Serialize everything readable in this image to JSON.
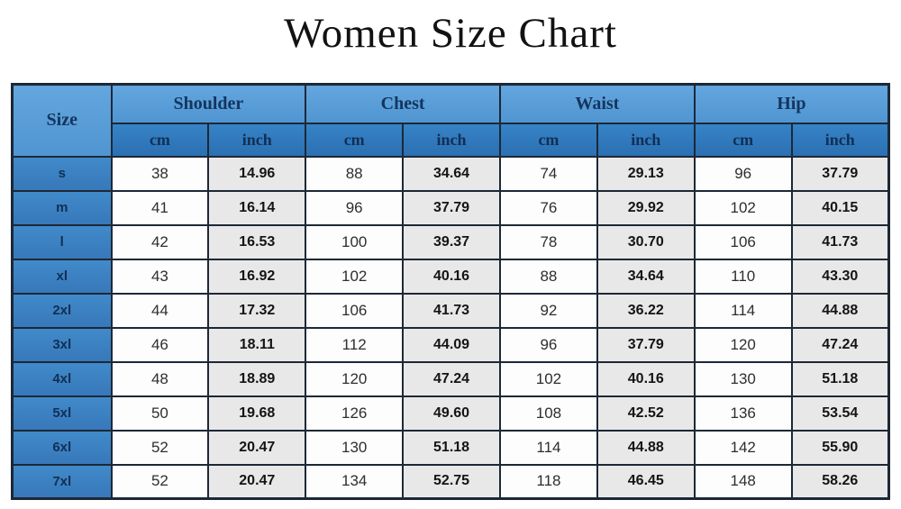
{
  "title": "Women Size Chart",
  "colors": {
    "group_header_bg": "#549BD7",
    "unit_header_bg": "#2F78BC",
    "size_cell_bg": "#3B84C6",
    "header_text": "#14355F",
    "cm_cell_bg": "#FDFDFD",
    "inch_cell_bg": "#E9E8E8",
    "border": "#1D2836"
  },
  "table": {
    "size_header": "Size",
    "groups": [
      "Shoulder",
      "Chest",
      "Waist",
      "Hip"
    ],
    "units": [
      "cm",
      "inch",
      "cm",
      "inch",
      "cm",
      "inch",
      "cm",
      "inch"
    ],
    "rows": [
      {
        "size": "s",
        "cells": [
          "38",
          "14.96",
          "88",
          "34.64",
          "74",
          "29.13",
          "96",
          "37.79"
        ]
      },
      {
        "size": "m",
        "cells": [
          "41",
          "16.14",
          "96",
          "37.79",
          "76",
          "29.92",
          "102",
          "40.15"
        ]
      },
      {
        "size": "l",
        "cells": [
          "42",
          "16.53",
          "100",
          "39.37",
          "78",
          "30.70",
          "106",
          "41.73"
        ]
      },
      {
        "size": "xl",
        "cells": [
          "43",
          "16.92",
          "102",
          "40.16",
          "88",
          "34.64",
          "110",
          "43.30"
        ]
      },
      {
        "size": "2xl",
        "cells": [
          "44",
          "17.32",
          "106",
          "41.73",
          "92",
          "36.22",
          "114",
          "44.88"
        ]
      },
      {
        "size": "3xl",
        "cells": [
          "46",
          "18.11",
          "112",
          "44.09",
          "96",
          "37.79",
          "120",
          "47.24"
        ]
      },
      {
        "size": "4xl",
        "cells": [
          "48",
          "18.89",
          "120",
          "47.24",
          "102",
          "40.16",
          "130",
          "51.18"
        ]
      },
      {
        "size": "5xl",
        "cells": [
          "50",
          "19.68",
          "126",
          "49.60",
          "108",
          "42.52",
          "136",
          "53.54"
        ]
      },
      {
        "size": "6xl",
        "cells": [
          "52",
          "20.47",
          "130",
          "51.18",
          "114",
          "44.88",
          "142",
          "55.90"
        ]
      },
      {
        "size": "7xl",
        "cells": [
          "52",
          "20.47",
          "134",
          "52.75",
          "118",
          "46.45",
          "148",
          "58.26"
        ]
      }
    ]
  },
  "chart_data": {
    "type": "table",
    "title": "Women Size Chart",
    "columns": [
      "Size",
      "Shoulder cm",
      "Shoulder inch",
      "Chest cm",
      "Chest inch",
      "Waist cm",
      "Waist inch",
      "Hip cm",
      "Hip inch"
    ],
    "rows": [
      [
        "s",
        38,
        14.96,
        88,
        34.64,
        74,
        29.13,
        96,
        37.79
      ],
      [
        "m",
        41,
        16.14,
        96,
        37.79,
        76,
        29.92,
        102,
        40.15
      ],
      [
        "l",
        42,
        16.53,
        100,
        39.37,
        78,
        30.7,
        106,
        41.73
      ],
      [
        "xl",
        43,
        16.92,
        102,
        40.16,
        88,
        34.64,
        110,
        43.3
      ],
      [
        "2xl",
        44,
        17.32,
        106,
        41.73,
        92,
        36.22,
        114,
        44.88
      ],
      [
        "3xl",
        46,
        18.11,
        112,
        44.09,
        96,
        37.79,
        120,
        47.24
      ],
      [
        "4xl",
        48,
        18.89,
        120,
        47.24,
        102,
        40.16,
        130,
        51.18
      ],
      [
        "5xl",
        50,
        19.68,
        126,
        49.6,
        108,
        42.52,
        136,
        53.54
      ],
      [
        "6xl",
        52,
        20.47,
        130,
        51.18,
        114,
        44.88,
        142,
        55.9
      ],
      [
        "7xl",
        52,
        20.47,
        134,
        52.75,
        118,
        46.45,
        148,
        58.26
      ]
    ]
  }
}
